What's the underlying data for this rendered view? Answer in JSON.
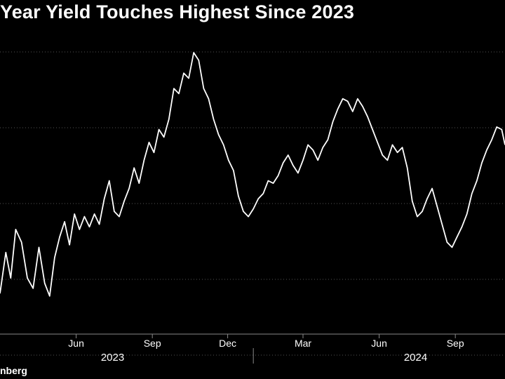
{
  "title": "Year Yield Touches Highest Since 2023",
  "source": "nberg",
  "chart_data": {
    "type": "line",
    "title": "Year Yield Touches Highest Since 2023",
    "line_color": "#ffffff",
    "background": "#000000",
    "grid": "horizontal dotted",
    "y_gridlines": 5,
    "x_start": "2023-03-01",
    "x_end": "2024-10-31",
    "x_ticks": [
      {
        "date": "2023-06-01",
        "label": "Jun"
      },
      {
        "date": "2023-09-01",
        "label": "Sep"
      },
      {
        "date": "2023-12-01",
        "label": "Dec"
      },
      {
        "date": "2024-03-01",
        "label": "Mar"
      },
      {
        "date": "2024-06-01",
        "label": "Jun"
      },
      {
        "date": "2024-09-01",
        "label": "Sep"
      }
    ],
    "year_labels": [
      {
        "date": "2023-07-15",
        "label": "2023"
      },
      {
        "date": "2024-07-15",
        "label": "2024"
      }
    ],
    "year_divider": "2024-01-01",
    "series": [
      {
        "points": [
          [
            "2023-03-01",
            0.06
          ],
          [
            "2023-03-08",
            0.22
          ],
          [
            "2023-03-14",
            0.12
          ],
          [
            "2023-03-20",
            0.31
          ],
          [
            "2023-03-27",
            0.26
          ],
          [
            "2023-04-03",
            0.12
          ],
          [
            "2023-04-10",
            0.08
          ],
          [
            "2023-04-17",
            0.24
          ],
          [
            "2023-04-24",
            0.1
          ],
          [
            "2023-04-30",
            0.05
          ],
          [
            "2023-05-06",
            0.2
          ],
          [
            "2023-05-12",
            0.28
          ],
          [
            "2023-05-18",
            0.34
          ],
          [
            "2023-05-24",
            0.25
          ],
          [
            "2023-05-30",
            0.37
          ],
          [
            "2023-06-05",
            0.31
          ],
          [
            "2023-06-11",
            0.36
          ],
          [
            "2023-06-17",
            0.32
          ],
          [
            "2023-06-23",
            0.37
          ],
          [
            "2023-06-29",
            0.33
          ],
          [
            "2023-07-05",
            0.43
          ],
          [
            "2023-07-11",
            0.5
          ],
          [
            "2023-07-17",
            0.38
          ],
          [
            "2023-07-23",
            0.36
          ],
          [
            "2023-07-29",
            0.42
          ],
          [
            "2023-08-04",
            0.47
          ],
          [
            "2023-08-10",
            0.55
          ],
          [
            "2023-08-16",
            0.49
          ],
          [
            "2023-08-22",
            0.58
          ],
          [
            "2023-08-28",
            0.65
          ],
          [
            "2023-09-03",
            0.61
          ],
          [
            "2023-09-09",
            0.7
          ],
          [
            "2023-09-15",
            0.67
          ],
          [
            "2023-09-21",
            0.74
          ],
          [
            "2023-09-27",
            0.86
          ],
          [
            "2023-10-03",
            0.84
          ],
          [
            "2023-10-09",
            0.92
          ],
          [
            "2023-10-15",
            0.9
          ],
          [
            "2023-10-21",
            1.0
          ],
          [
            "2023-10-27",
            0.97
          ],
          [
            "2023-11-02",
            0.86
          ],
          [
            "2023-11-08",
            0.82
          ],
          [
            "2023-11-14",
            0.74
          ],
          [
            "2023-11-20",
            0.68
          ],
          [
            "2023-11-26",
            0.64
          ],
          [
            "2023-12-02",
            0.58
          ],
          [
            "2023-12-08",
            0.54
          ],
          [
            "2023-12-14",
            0.44
          ],
          [
            "2023-12-20",
            0.38
          ],
          [
            "2023-12-26",
            0.36
          ],
          [
            "2024-01-01",
            0.39
          ],
          [
            "2024-01-07",
            0.43
          ],
          [
            "2024-01-13",
            0.45
          ],
          [
            "2024-01-19",
            0.5
          ],
          [
            "2024-01-25",
            0.49
          ],
          [
            "2024-01-31",
            0.52
          ],
          [
            "2024-02-06",
            0.57
          ],
          [
            "2024-02-12",
            0.6
          ],
          [
            "2024-02-18",
            0.56
          ],
          [
            "2024-02-24",
            0.53
          ],
          [
            "2024-03-01",
            0.58
          ],
          [
            "2024-03-07",
            0.64
          ],
          [
            "2024-03-13",
            0.62
          ],
          [
            "2024-03-19",
            0.58
          ],
          [
            "2024-03-25",
            0.63
          ],
          [
            "2024-03-31",
            0.66
          ],
          [
            "2024-04-06",
            0.73
          ],
          [
            "2024-04-12",
            0.78
          ],
          [
            "2024-04-18",
            0.82
          ],
          [
            "2024-04-24",
            0.81
          ],
          [
            "2024-04-30",
            0.77
          ],
          [
            "2024-05-06",
            0.82
          ],
          [
            "2024-05-12",
            0.79
          ],
          [
            "2024-05-18",
            0.75
          ],
          [
            "2024-05-24",
            0.7
          ],
          [
            "2024-05-30",
            0.65
          ],
          [
            "2024-06-05",
            0.6
          ],
          [
            "2024-06-11",
            0.58
          ],
          [
            "2024-06-17",
            0.64
          ],
          [
            "2024-06-23",
            0.61
          ],
          [
            "2024-06-29",
            0.63
          ],
          [
            "2024-07-05",
            0.55
          ],
          [
            "2024-07-11",
            0.42
          ],
          [
            "2024-07-17",
            0.36
          ],
          [
            "2024-07-23",
            0.38
          ],
          [
            "2024-07-29",
            0.43
          ],
          [
            "2024-08-04",
            0.47
          ],
          [
            "2024-08-10",
            0.4
          ],
          [
            "2024-08-16",
            0.33
          ],
          [
            "2024-08-22",
            0.26
          ],
          [
            "2024-08-28",
            0.24
          ],
          [
            "2024-09-03",
            0.28
          ],
          [
            "2024-09-09",
            0.32
          ],
          [
            "2024-09-15",
            0.37
          ],
          [
            "2024-09-21",
            0.45
          ],
          [
            "2024-09-27",
            0.5
          ],
          [
            "2024-10-03",
            0.57
          ],
          [
            "2024-10-09",
            0.62
          ],
          [
            "2024-10-15",
            0.66
          ],
          [
            "2024-10-21",
            0.71
          ],
          [
            "2024-10-27",
            0.7
          ],
          [
            "2024-10-31",
            0.64
          ]
        ]
      }
    ]
  }
}
